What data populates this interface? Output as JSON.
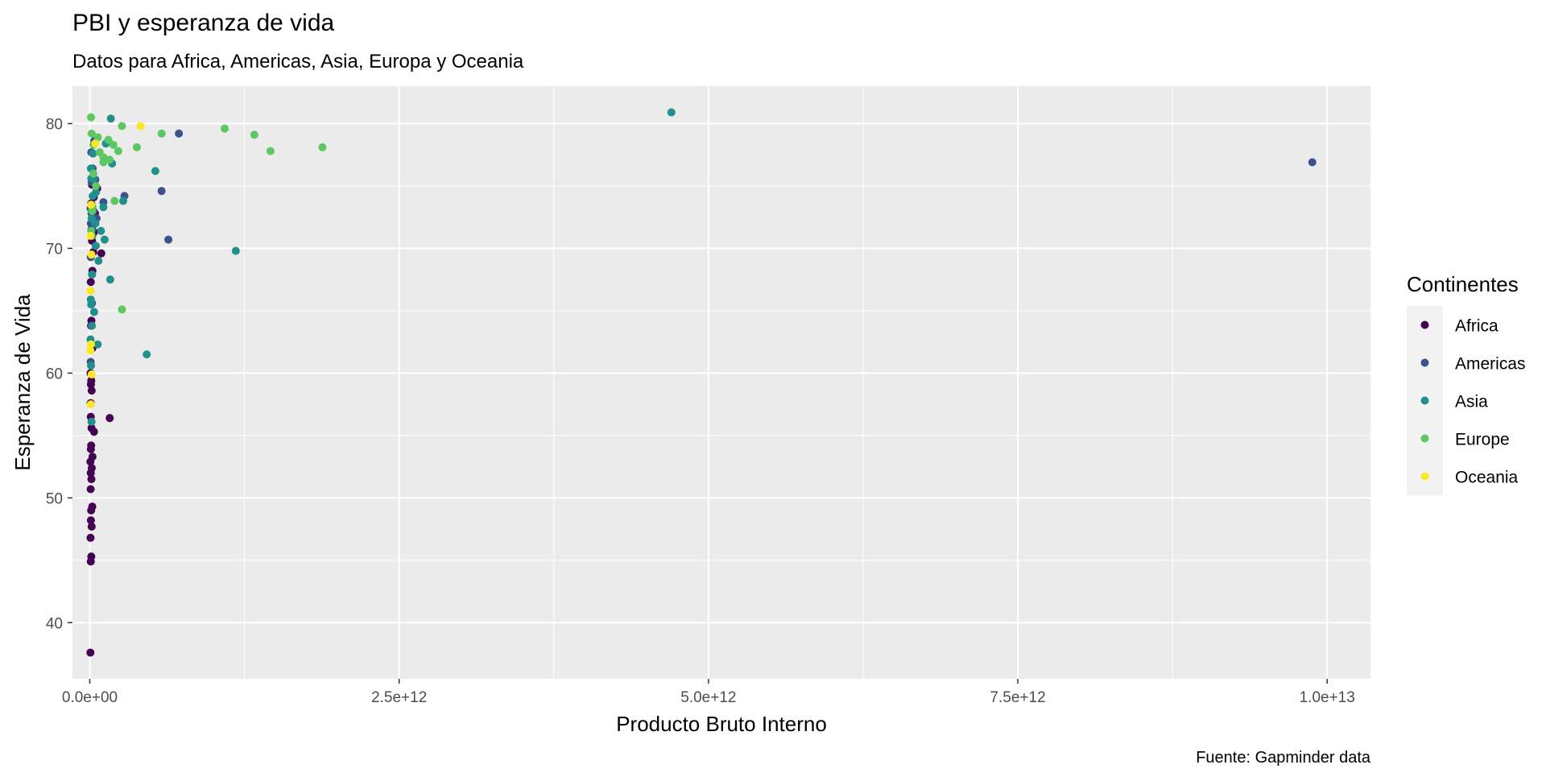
{
  "chart_data": {
    "type": "scatter",
    "title": "PBI y esperanza de vida",
    "subtitle": "Datos para Africa, Americas, Asia, Europa y Oceania",
    "xlabel": "Producto Bruto Interno",
    "ylabel": "Esperanza de Vida",
    "caption": "Fuente: Gapminder data",
    "legend_title": "Continentes",
    "legend_position": "right",
    "grid": true,
    "xlim": [
      -140000000000.0,
      10350000000000.0
    ],
    "ylim": [
      35.5,
      83.0
    ],
    "x_ticks": [
      {
        "value": 0,
        "label": "0.0e+00"
      },
      {
        "value": 2500000000000.0,
        "label": "2.5e+12"
      },
      {
        "value": 5000000000000.0,
        "label": "5.0e+12"
      },
      {
        "value": 7500000000000.0,
        "label": "7.5e+12"
      },
      {
        "value": 10000000000000.0,
        "label": "1.0e+13"
      }
    ],
    "x_minor": [
      1250000000000.0,
      3750000000000.0,
      6250000000000.0,
      8750000000000.0
    ],
    "y_ticks": [
      {
        "value": 40,
        "label": "40"
      },
      {
        "value": 50,
        "label": "50"
      },
      {
        "value": 60,
        "label": "60"
      },
      {
        "value": 70,
        "label": "70"
      },
      {
        "value": 80,
        "label": "80"
      }
    ],
    "y_minor": [
      45,
      55,
      65,
      75
    ],
    "series": [
      {
        "name": "Africa",
        "color": "#440154",
        "points": [
          [
            5000000000.0,
            37.6
          ],
          [
            8000000000.0,
            44.9
          ],
          [
            12000000000.0,
            45.3
          ],
          [
            6000000000.0,
            46.8
          ],
          [
            15000000000.0,
            47.7
          ],
          [
            9000000000.0,
            48.2
          ],
          [
            11000000000.0,
            49.0
          ],
          [
            20000000000.0,
            49.3
          ],
          [
            7000000000.0,
            50.7
          ],
          [
            13000000000.0,
            51.5
          ],
          [
            8000000000.0,
            52.0
          ],
          [
            16000000000.0,
            52.4
          ],
          [
            5000000000.0,
            52.9
          ],
          [
            22000000000.0,
            53.3
          ],
          [
            9000000000.0,
            53.9
          ],
          [
            11000000000.0,
            54.2
          ],
          [
            34000000000.0,
            55.3
          ],
          [
            14000000000.0,
            55.6
          ],
          [
            8000000000.0,
            56.5
          ],
          [
            161000000000.0,
            56.4
          ],
          [
            7000000000.0,
            57.6
          ],
          [
            15000000000.0,
            58.6
          ],
          [
            9000000000.0,
            59.1
          ],
          [
            12000000000.0,
            59.4
          ],
          [
            6000000000.0,
            60.0
          ],
          [
            21000000000.0,
            62.0
          ],
          [
            10000000000.0,
            63.8
          ],
          [
            13000000000.0,
            64.2
          ],
          [
            8000000000.0,
            67.3
          ],
          [
            21000000000.0,
            68.2
          ],
          [
            28000000000.0,
            69.7
          ],
          [
            93000000000.0,
            69.6
          ],
          [
            18000000000.0,
            70.6
          ],
          [
            33000000000.0,
            71.3
          ],
          [
            12000000000.0,
            71.4
          ],
          [
            22000000000.0,
            72.3
          ],
          [
            42000000000.0,
            72.8
          ],
          [
            11000000000.0,
            73.6
          ],
          [
            32000000000.0,
            74.1
          ],
          [
            60000000000.0,
            74.8
          ],
          [
            18000000000.0,
            75.1
          ]
        ]
      },
      {
        "name": "Americas",
        "color": "#3b528b",
        "points": [
          [
            9880000000000.0,
            76.9
          ],
          [
            720000000000.0,
            79.2
          ],
          [
            635000000000.0,
            70.7
          ],
          [
            580000000000.0,
            74.6
          ],
          [
            280000000000.0,
            74.2
          ],
          [
            110000000000.0,
            73.7
          ],
          [
            45000000000.0,
            75.5
          ],
          [
            23000000000.0,
            76.4
          ],
          [
            55000000000.0,
            72.4
          ],
          [
            35000000000.0,
            78.6
          ],
          [
            12000000000.0,
            77.7
          ],
          [
            24000000000.0,
            74.2
          ],
          [
            16000000000.0,
            71.6
          ],
          [
            8000000000.0,
            69.3
          ],
          [
            14000000000.0,
            72.8
          ],
          [
            6000000000.0,
            73.2
          ],
          [
            18000000000.0,
            65.6
          ],
          [
            7000000000.0,
            60.9
          ],
          [
            15000000000.0,
            75.3
          ],
          [
            29000000000.0,
            73.0
          ],
          [
            9000000000.0,
            72.0
          ],
          [
            31000000000.0,
            71.9
          ]
        ]
      },
      {
        "name": "Asia",
        "color": "#21908d",
        "points": [
          [
            4700000000000.0,
            80.9
          ],
          [
            1180000000000.0,
            69.8
          ],
          [
            530000000000.0,
            76.2
          ],
          [
            460000000000.0,
            61.5
          ],
          [
            270000000000.0,
            73.8
          ],
          [
            170000000000.0,
            80.4
          ],
          [
            165000000000.0,
            67.5
          ],
          [
            180000000000.0,
            76.8
          ],
          [
            130000000000.0,
            78.4
          ],
          [
            110000000000.0,
            73.3
          ],
          [
            120000000000.0,
            70.7
          ],
          [
            90000000000.0,
            71.4
          ],
          [
            70000000000.0,
            69.0
          ],
          [
            64000000000.0,
            62.3
          ],
          [
            35000000000.0,
            64.9
          ],
          [
            45000000000.0,
            72.0
          ],
          [
            30000000000.0,
            75.6
          ],
          [
            24000000000.0,
            74.2
          ],
          [
            20000000000.0,
            73.0
          ],
          [
            15000000000.0,
            72.4
          ],
          [
            18000000000.0,
            67.9
          ],
          [
            11000000000.0,
            65.5
          ],
          [
            8000000000.0,
            65.9
          ],
          [
            17000000000.0,
            63.8
          ],
          [
            6000000000.0,
            62.7
          ],
          [
            10000000000.0,
            60.6
          ],
          [
            14000000000.0,
            56.1
          ],
          [
            9000000000.0,
            76.4
          ],
          [
            26000000000.0,
            77.6
          ],
          [
            50000000000.0,
            74.5
          ],
          [
            20000000000.0,
            71.0
          ],
          [
            12000000000.0,
            75.6
          ],
          [
            48000000000.0,
            70.2
          ]
        ]
      },
      {
        "name": "Europe",
        "color": "#5dc863",
        "points": [
          [
            1880000000000.0,
            78.1
          ],
          [
            1460000000000.0,
            77.8
          ],
          [
            1330000000000.0,
            79.1
          ],
          [
            1090000000000.0,
            79.6
          ],
          [
            580000000000.0,
            79.2
          ],
          [
            380000000000.0,
            78.1
          ],
          [
            260000000000.0,
            79.8
          ],
          [
            230000000000.0,
            77.8
          ],
          [
            190000000000.0,
            78.3
          ],
          [
            160000000000.0,
            77.1
          ],
          [
            110000000000.0,
            76.9
          ],
          [
            150000000000.0,
            78.7
          ],
          [
            260000000000.0,
            65.1
          ],
          [
            200000000000.0,
            73.8
          ],
          [
            80000000000.0,
            77.7
          ],
          [
            65000000000.0,
            78.9
          ],
          [
            50000000000.0,
            75.0
          ],
          [
            30000000000.0,
            78.3
          ],
          [
            15000000000.0,
            79.2
          ],
          [
            10000000000.0,
            80.5
          ],
          [
            22000000000.0,
            73.3
          ],
          [
            29000000000.0,
            76.0
          ],
          [
            18000000000.0,
            73.0
          ],
          [
            12000000000.0,
            71.4
          ],
          [
            110000000000.0,
            77.3
          ]
        ]
      },
      {
        "name": "Oceania",
        "color": "#fde725",
        "points": [
          [
            410000000000.0,
            79.8
          ],
          [
            45000000000.0,
            78.4
          ],
          [
            10000000000.0,
            73.5
          ],
          [
            6000000000.0,
            66.6
          ],
          [
            9000000000.0,
            62.3
          ],
          [
            5000000000.0,
            61.8
          ],
          [
            8000000000.0,
            57.5
          ],
          [
            15000000000.0,
            59.9
          ],
          [
            13000000000.0,
            69.5
          ],
          [
            7000000000.0,
            71.0
          ]
        ]
      }
    ]
  }
}
